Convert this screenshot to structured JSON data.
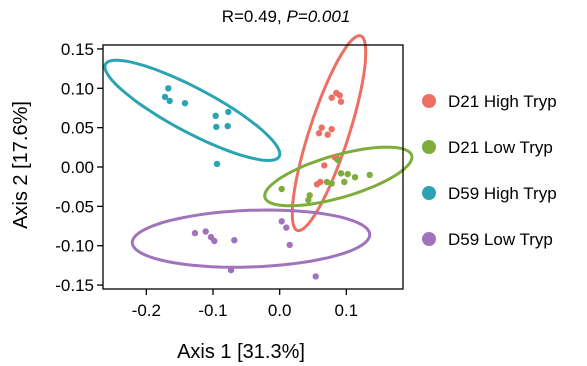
{
  "chart_data": {
    "type": "scatter",
    "title": {
      "r_text": "R=0.49, ",
      "p_text": "P=0.001"
    },
    "xlabel": "Axis 1 [31.3%]",
    "ylabel": "Axis 2 [17.6%]",
    "xlim": [
      -0.265,
      0.185
    ],
    "ylim": [
      -0.155,
      0.155
    ],
    "x_ticks": [
      -0.2,
      -0.1,
      0.0,
      0.1
    ],
    "x_tick_labels": [
      "-0.2",
      "-0.1",
      "0.0",
      "0.1"
    ],
    "y_ticks": [
      0.15,
      0.1,
      0.05,
      0.0,
      -0.05,
      -0.1,
      -0.15
    ],
    "y_tick_labels": [
      "0.15",
      "0.10",
      "0.05",
      "0.00",
      "-0.05",
      "-0.10",
      "-0.15"
    ],
    "grid": false,
    "legend_position": "right",
    "series": [
      {
        "name": "D21 High Tryp",
        "color": "#ED6F63",
        "points": [
          [
            0.085,
            0.094
          ],
          [
            0.09,
            0.091
          ],
          [
            0.078,
            0.088
          ],
          [
            0.092,
            0.083
          ],
          [
            0.063,
            0.05
          ],
          [
            0.078,
            0.048
          ],
          [
            0.059,
            0.043
          ],
          [
            0.072,
            0.041
          ],
          [
            0.083,
            0.012
          ],
          [
            0.067,
            0.002
          ],
          [
            0.086,
            0.011
          ],
          [
            0.061,
            -0.019
          ],
          [
            0.056,
            -0.022
          ]
        ],
        "ellipse": {
          "cx": 0.074,
          "cy": 0.043,
          "rx": 0.13,
          "ry": 0.025,
          "angle_deg": 72
        }
      },
      {
        "name": "D21 Low Tryp",
        "color": "#7EAD3B",
        "points": [
          [
            0.087,
            0.009
          ],
          [
            0.092,
            -0.008
          ],
          [
            0.102,
            -0.009
          ],
          [
            0.113,
            -0.013
          ],
          [
            0.135,
            -0.01
          ],
          [
            0.097,
            -0.019
          ],
          [
            0.071,
            -0.019
          ],
          [
            0.078,
            -0.021
          ],
          [
            0.003,
            -0.028
          ],
          [
            0.045,
            -0.036
          ],
          [
            0.043,
            -0.042
          ]
        ],
        "ellipse": {
          "cx": 0.088,
          "cy": -0.012,
          "rx": 0.097,
          "ry": 0.027,
          "angle_deg": 16
        }
      },
      {
        "name": "D59 High Tryp",
        "color": "#2AA3B3",
        "points": [
          [
            -0.167,
            0.1
          ],
          [
            -0.172,
            0.089
          ],
          [
            -0.165,
            0.084
          ],
          [
            -0.142,
            0.081
          ],
          [
            -0.077,
            0.07
          ],
          [
            -0.096,
            0.065
          ],
          [
            -0.095,
            0.051
          ],
          [
            -0.078,
            0.052
          ],
          [
            -0.094,
            0.004
          ]
        ],
        "ellipse": {
          "cx": -0.131,
          "cy": 0.072,
          "rx": 0.125,
          "ry": 0.028,
          "angle_deg": -28
        }
      },
      {
        "name": "D59 Low Tryp",
        "color": "#A073BC",
        "points": [
          [
            -0.127,
            -0.084
          ],
          [
            -0.111,
            -0.082
          ],
          [
            -0.103,
            -0.089
          ],
          [
            -0.098,
            -0.094
          ],
          [
            -0.068,
            -0.093
          ],
          [
            -0.073,
            -0.131
          ],
          [
            0.003,
            -0.069
          ],
          [
            0.01,
            -0.077
          ],
          [
            0.015,
            -0.099
          ],
          [
            0.054,
            -0.139
          ]
        ],
        "ellipse": {
          "cx": -0.043,
          "cy": -0.091,
          "rx": 0.151,
          "ry": 0.036,
          "angle_deg": 2
        }
      }
    ]
  }
}
